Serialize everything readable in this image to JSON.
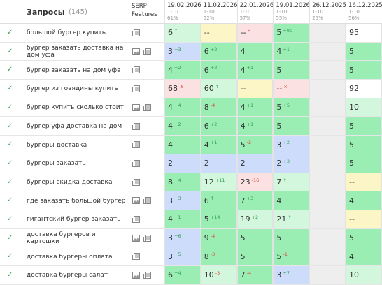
{
  "header": {
    "title": "Запросы",
    "count": "(145)",
    "serp": "SERP Features",
    "columns": [
      {
        "date": "19.02.2026",
        "range": "1-10",
        "percent": "61%"
      },
      {
        "date": "11.02.2026",
        "range": "1-10",
        "percent": "52%"
      },
      {
        "date": "22.01.2026",
        "range": "1-10",
        "percent": "57%"
      },
      {
        "date": "19.01.2026",
        "range": "1-10",
        "percent": "55%"
      },
      {
        "date": "26.12.2025",
        "range": "1-10",
        "percent": "25%"
      },
      {
        "date": "16.12.2025",
        "range": "1-10",
        "percent": "56%"
      }
    ]
  },
  "rows": [
    {
      "query": "большой бургер купить",
      "cells": [
        {
          "value": 6,
          "change": "↑",
          "bg": "#d2f7dd"
        },
        {
          "value": "--",
          "bg": "#fcf6c6"
        },
        {
          "value": "--",
          "change": "×",
          "bg": "#fbe1e1"
        },
        {
          "value": 5,
          "change": "+90",
          "bg": "#9beeb3"
        },
        null,
        {
          "value": 95,
          "bg": "#ffffff"
        }
      ]
    },
    {
      "query": "бургер заказать доставка на дом уфа",
      "cells": [
        {
          "value": 3,
          "change": "+3",
          "bg": "#cddcfb"
        },
        {
          "value": 6,
          "change": "+2",
          "bg": "#9beeb3"
        },
        {
          "value": 4,
          "bg": "#9beeb3"
        },
        {
          "value": 4,
          "change": "+1",
          "bg": "#9beeb3"
        },
        null,
        {
          "value": 5,
          "bg": "#9beeb3"
        }
      ]
    },
    {
      "query": "бургер заказать на дом уфа",
      "cells": [
        {
          "value": 4,
          "change": "+2",
          "bg": "#9beeb3"
        },
        {
          "value": 6,
          "change": "+2",
          "bg": "#9beeb3"
        },
        {
          "value": 4,
          "change": "+1",
          "bg": "#9beeb3"
        },
        {
          "value": 5,
          "bg": "#9beeb3"
        },
        null,
        {
          "value": 5,
          "bg": "#9beeb3"
        }
      ]
    },
    {
      "query": "бургер из говядины купить",
      "cells": [
        {
          "value": 68,
          "change": "-8",
          "bg": "#fbe1e1"
        },
        {
          "value": 60,
          "change": "↑",
          "bg": "#d2f7dd"
        },
        {
          "value": "--",
          "bg": "#fcf6c6"
        },
        {
          "value": "--",
          "change": "×",
          "bg": "#fbe1e1"
        },
        null,
        {
          "value": 92,
          "bg": "#ffffff"
        }
      ]
    },
    {
      "query": "бургер купить сколько стоит",
      "cells": [
        {
          "value": 4,
          "change": "+4",
          "bg": "#9beeb3"
        },
        {
          "value": 8,
          "change": "-4",
          "bg": "#9beeb3"
        },
        {
          "value": 4,
          "change": "+1",
          "bg": "#9beeb3"
        },
        {
          "value": 5,
          "change": "+5",
          "bg": "#9beeb3"
        },
        null,
        {
          "value": 10,
          "bg": "#d2f7dd"
        }
      ]
    },
    {
      "query": "бургер уфа доставка на дом",
      "cells": [
        {
          "value": 4,
          "change": "+2",
          "bg": "#9beeb3"
        },
        {
          "value": 6,
          "change": "+2",
          "bg": "#9beeb3"
        },
        {
          "value": 4,
          "change": "+1",
          "bg": "#9beeb3"
        },
        {
          "value": 5,
          "bg": "#9beeb3"
        },
        null,
        {
          "value": 5,
          "bg": "#9beeb3"
        }
      ]
    },
    {
      "query": "бургеры доставка",
      "cells": [
        {
          "value": 4,
          "bg": "#9beeb3"
        },
        {
          "value": 4,
          "change": "+1",
          "bg": "#9beeb3"
        },
        {
          "value": 5,
          "change": "-2",
          "bg": "#9beeb3"
        },
        {
          "value": 3,
          "change": "+2",
          "bg": "#cddcfb"
        },
        null,
        {
          "value": 5,
          "bg": "#9beeb3"
        }
      ]
    },
    {
      "query": "бургеры заказать",
      "cells": [
        {
          "value": 2,
          "bg": "#cddcfb"
        },
        {
          "value": 2,
          "bg": "#cddcfb"
        },
        {
          "value": 2,
          "bg": "#cddcfb"
        },
        {
          "value": 2,
          "change": "+3",
          "bg": "#cddcfb"
        },
        null,
        {
          "value": 5,
          "bg": "#9beeb3"
        }
      ]
    },
    {
      "query": "бургеры скидка доставка",
      "cells": [
        {
          "value": 8,
          "change": "+4",
          "bg": "#9beeb3"
        },
        {
          "value": 12,
          "change": "+11",
          "bg": "#d2f7dd"
        },
        {
          "value": 23,
          "change": "-16",
          "bg": "#fbe1e1"
        },
        {
          "value": 7,
          "change": "↑",
          "bg": "#d2f7dd"
        },
        null,
        {
          "value": "--",
          "bg": "#fcf6c6"
        }
      ]
    },
    {
      "query": "где заказать большой бургер",
      "cells": [
        {
          "value": 3,
          "change": "+3",
          "bg": "#cddcfb"
        },
        {
          "value": 6,
          "change": "↑",
          "bg": "#9beeb3"
        },
        {
          "value": 7,
          "change": "+3",
          "bg": "#9beeb3"
        },
        {
          "value": 4,
          "bg": "#9beeb3"
        },
        null,
        {
          "value": 4,
          "bg": "#9beeb3"
        }
      ]
    },
    {
      "query": "гигантский бургер заказать",
      "cells": [
        {
          "value": 4,
          "change": "+1",
          "bg": "#9beeb3"
        },
        {
          "value": 5,
          "change": "+14",
          "bg": "#9beeb3"
        },
        {
          "value": 19,
          "change": "+2",
          "bg": "#d2f7dd"
        },
        {
          "value": 21,
          "change": "↑",
          "bg": "#d2f7dd"
        },
        null,
        {
          "value": "--",
          "bg": "#fcf6c6"
        }
      ]
    },
    {
      "query": "доставка бургеров и картошки",
      "cells": [
        {
          "value": 3,
          "change": "+6",
          "bg": "#cddcfb"
        },
        {
          "value": 9,
          "change": "-4",
          "bg": "#9beeb3"
        },
        {
          "value": 5,
          "bg": "#9beeb3"
        },
        {
          "value": 5,
          "bg": "#9beeb3"
        },
        null,
        {
          "value": 5,
          "bg": "#9beeb3"
        }
      ]
    },
    {
      "query": "доставка бургеры оплата",
      "cells": [
        {
          "value": 3,
          "change": "+5",
          "bg": "#cddcfb"
        },
        {
          "value": 8,
          "change": "-3",
          "bg": "#9beeb3"
        },
        {
          "value": 5,
          "bg": "#9beeb3"
        },
        {
          "value": 5,
          "change": "-1",
          "bg": "#9beeb3"
        },
        null,
        {
          "value": 4,
          "bg": "#9beeb3"
        }
      ]
    },
    {
      "query": "доставка бургеры салат",
      "cells": [
        {
          "value": 6,
          "change": "+4",
          "bg": "#9beeb3"
        },
        {
          "value": 10,
          "change": "-3",
          "bg": "#d2f7dd"
        },
        {
          "value": 7,
          "change": "-4",
          "bg": "#9beeb3"
        },
        {
          "value": 3,
          "change": "+7",
          "bg": "#cddcfb"
        },
        null,
        {
          "value": 10,
          "bg": "#d2f7dd"
        }
      ]
    }
  ]
}
